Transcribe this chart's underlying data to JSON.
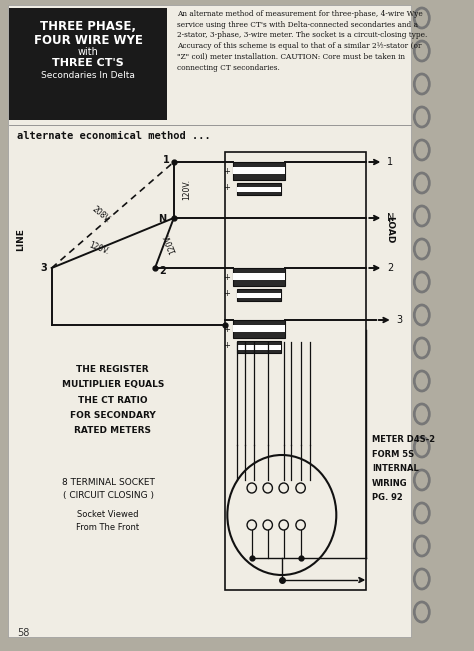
{
  "bg_color": "#b0aca0",
  "page_bg": "#f0ede4",
  "title_box_color": "#1a1a1a",
  "title_lines": [
    "THREE PHASE,",
    "FOUR WIRE WYE",
    "with",
    "THREE CT'S",
    "Secondaries In Delta"
  ],
  "header_text": "An alternate method of measurement for three-phase, 4-wire Wye\nservice using three CT's with Delta-connected secondaries and a\n2-stator, 3-phase, 3-wire meter. The socket is a circuit-closing type.\nAccuracy of this scheme is equal to that of a similar 2½-stator (or\n\"Z\" coil) meter installation. CAUTION: Core must be taken in\nconnecting CT secondaries.",
  "subtitle": "alternate economical method ...",
  "left_text1": "THE REGISTER\nMULTIPLIER EQUALS\nTHE CT RATIO\nFOR SECONDARY\nRATED METERS",
  "left_text2": "8 TERMINAL SOCKET\n( CIRCUIT CLOSING )",
  "left_text3": "Socket Viewed\nFrom The Front",
  "right_text": "METER D4S-2\nFORM 5S\nINTERNAL\nWIRING\nPG. 92",
  "page_num": "58",
  "line_color": "#111111",
  "spiral_color": "#777777"
}
